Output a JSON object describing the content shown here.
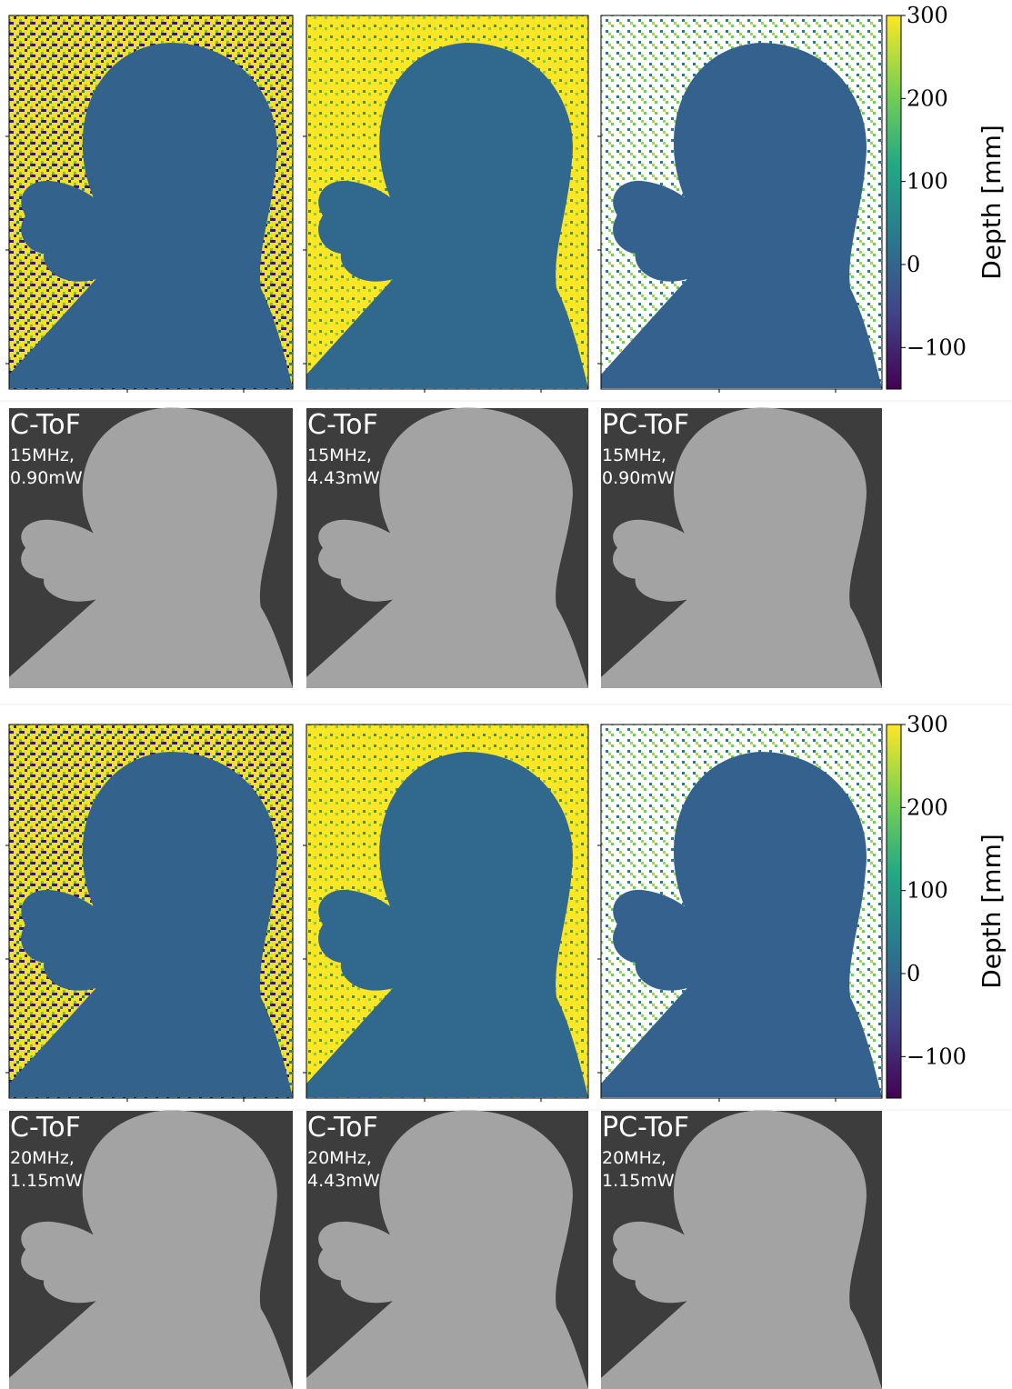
{
  "figure_rows": [
    {
      "colorbar": {
        "label": "Depth [mm]",
        "lim": [
          -150,
          300
        ],
        "ticks": [
          300,
          200,
          100,
          0,
          {
            "value": -100,
            "label": "−100"
          }
        ]
      },
      "panels": [
        {
          "method": "C-ToF",
          "settings": [
            "15MHz,",
            "0.90mW"
          ]
        },
        {
          "method": "C-ToF",
          "settings": [
            "15MHz,",
            "4.43mW"
          ]
        },
        {
          "method": "PC-ToF",
          "settings": [
            "15MHz,",
            "0.90mW"
          ]
        }
      ]
    },
    {
      "colorbar": {
        "label": "Depth [mm]",
        "lim": [
          -150,
          300
        ],
        "ticks": [
          300,
          200,
          100,
          0,
          {
            "value": -100,
            "label": "−100"
          }
        ]
      },
      "panels": [
        {
          "method": "C-ToF",
          "settings": [
            "20MHz,",
            "1.15mW"
          ]
        },
        {
          "method": "C-ToF",
          "settings": [
            "20MHz,",
            "4.43mW"
          ]
        },
        {
          "method": "PC-ToF",
          "settings": [
            "20MHz,",
            "1.15mW"
          ]
        }
      ]
    }
  ]
}
